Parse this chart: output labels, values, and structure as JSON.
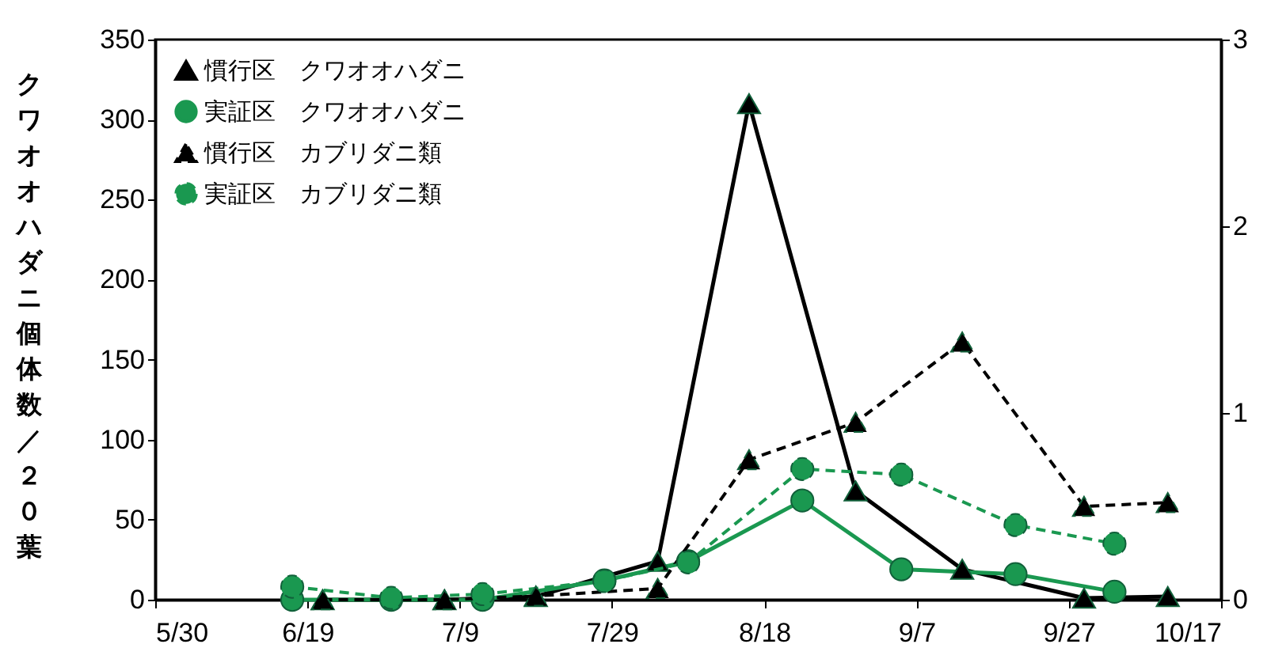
{
  "chart_data": {
    "type": "line",
    "ylabel": "クワオオハダニ個体数／２０葉",
    "xlim": [
      "--05-30",
      "--10-17"
    ],
    "xticks": [
      {
        "value": "--05-30",
        "label": "5/30"
      },
      {
        "value": "--06-19",
        "label": "6/19"
      },
      {
        "value": "--07-09",
        "label": "7/9"
      },
      {
        "value": "--07-29",
        "label": "7/29"
      },
      {
        "value": "--08-18",
        "label": "8/18"
      },
      {
        "value": "--09-07",
        "label": "9/7"
      },
      {
        "value": "--09-27",
        "label": "9/27"
      },
      {
        "value": "--10-17",
        "label": "10/17"
      }
    ],
    "ylim": [
      0,
      350
    ],
    "yticks": [
      0,
      50,
      100,
      150,
      200,
      250,
      300,
      350
    ],
    "y2lim": [
      0,
      3
    ],
    "y2ticks": [
      0,
      1,
      2,
      3
    ],
    "legend": "top left",
    "series": [
      {
        "name": "慣行区　クワオオハダニ",
        "color": "#000000",
        "marker": "triangle",
        "line_style": "solid",
        "x": [
          "--06-21",
          "--07-07",
          "--07-19",
          "--08-04",
          "--08-16",
          "--08-30",
          "--09-13",
          "--09-29",
          "--10-10"
        ],
        "values": [
          0,
          0,
          2,
          24,
          310,
          68,
          19,
          1,
          2
        ]
      },
      {
        "name": "実証区　クワオオハダニ",
        "color": "#1a9850",
        "marker": "circle",
        "line_style": "solid",
        "x": [
          "--06-17",
          "--06-30",
          "--07-12",
          "--07-28",
          "--08-08",
          "--08-23",
          "--09-05",
          "--09-20",
          "--10-03"
        ],
        "values": [
          0,
          0,
          0,
          12,
          24,
          62,
          19,
          16,
          5
        ]
      },
      {
        "name": "慣行区　カブリダニ類",
        "color": "#000000",
        "marker": "triangle",
        "line_style": "dashed",
        "axis": "y2",
        "x": [
          "--06-21",
          "--07-07",
          "--07-19",
          "--08-04",
          "--08-16",
          "--08-30",
          "--09-13",
          "--09-29",
          "--10-10"
        ],
        "values": [
          0,
          0,
          0.02,
          0.06,
          0.75,
          0.95,
          1.38,
          0.5,
          0.52
        ]
      },
      {
        "name": "実証区　カブリダニ類",
        "color": "#1a9850",
        "marker": "circle",
        "line_style": "dashed",
        "axis": "y2",
        "x": [
          "--06-17",
          "--06-30",
          "--07-12",
          "--07-28",
          "--08-08",
          "--08-23",
          "--09-05",
          "--09-20",
          "--10-03"
        ],
        "values": [
          0.07,
          0.01,
          0.03,
          0.1,
          0.2,
          0.7,
          0.67,
          0.4,
          0.3
        ]
      }
    ]
  }
}
